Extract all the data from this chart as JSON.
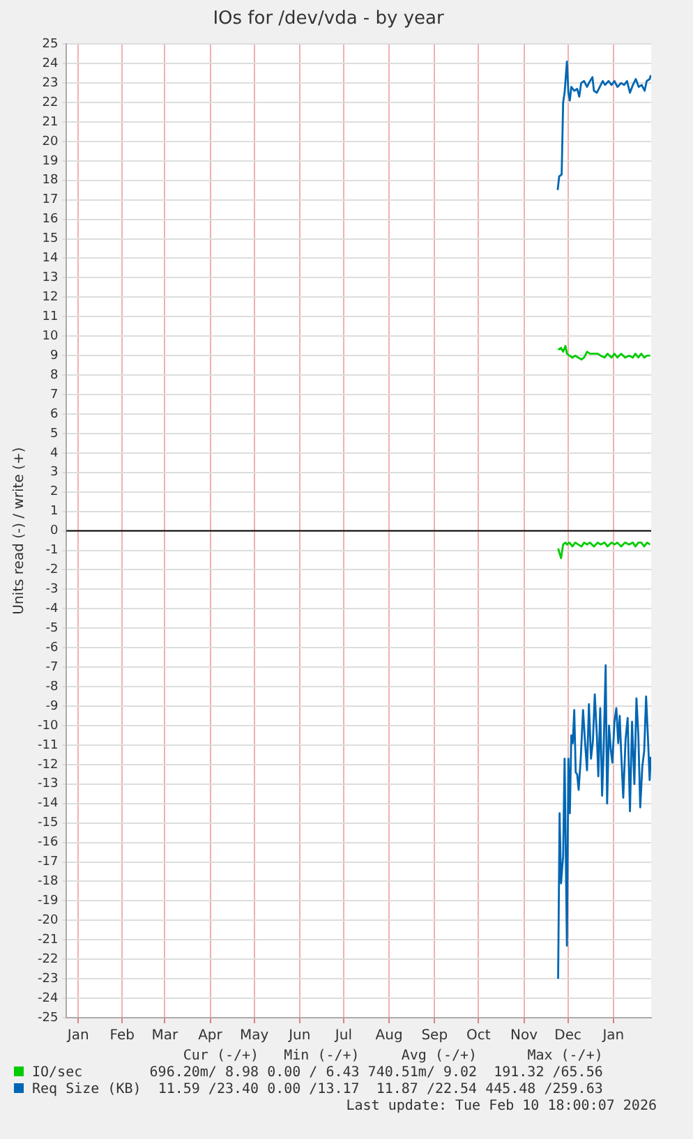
{
  "chart_data": {
    "type": "line",
    "title": "IOs for /dev/vda - by year",
    "ylabel": "Units read (-) / write (+)",
    "xlim": [
      "2025-01-08",
      "2026-02-10T18:00"
    ],
    "xticks": [
      {
        "value": "2025-01-16",
        "label": "Jan"
      },
      {
        "value": "2025-02-15",
        "label": "Feb"
      },
      {
        "value": "2025-03-16",
        "label": "Mar"
      },
      {
        "value": "2025-04-16",
        "label": "Apr"
      },
      {
        "value": "2025-05-16",
        "label": "May"
      },
      {
        "value": "2025-06-16",
        "label": "Jun"
      },
      {
        "value": "2025-07-16",
        "label": "Jul"
      },
      {
        "value": "2025-08-16",
        "label": "Aug"
      },
      {
        "value": "2025-09-16",
        "label": "Sep"
      },
      {
        "value": "2025-10-16",
        "label": "Oct"
      },
      {
        "value": "2025-11-16",
        "label": "Nov"
      },
      {
        "value": "2025-12-16",
        "label": "Dec"
      },
      {
        "value": "2026-01-16",
        "label": "Jan"
      }
    ],
    "ylim": [
      -25,
      25
    ],
    "yticks": [
      -25,
      -24,
      -23,
      -22,
      -21,
      -20,
      -19,
      -18,
      -17,
      -16,
      -15,
      -14,
      -13,
      -12,
      -11,
      -10,
      -9,
      -8,
      -7,
      -6,
      -5,
      -4,
      -3,
      -2,
      -1,
      0,
      1,
      2,
      3,
      4,
      5,
      6,
      7,
      8,
      9,
      10,
      11,
      12,
      13,
      14,
      15,
      16,
      17,
      18,
      19,
      20,
      21,
      22,
      23,
      24,
      25
    ],
    "grid": true,
    "legend": "bottom",
    "marker": "none",
    "line_style": "solid",
    "ref_lines": [
      {
        "axis": "y",
        "value": 0,
        "color": "#000000"
      }
    ],
    "series": [
      {
        "name": "IO/sec",
        "color": "#00cc00",
        "x": [
          "2025-12-09T07:00",
          "2025-12-11T07:00",
          "2025-12-12T17:00",
          "2025-12-14T07:00",
          "2025-12-15T07:00",
          "2025-12-17T00:00",
          "2025-12-19T00:00",
          "2025-12-21T00:00",
          "2025-12-23T00:00",
          "2025-12-25T07:00",
          "2025-12-27T00:00",
          "2025-12-29T00:00",
          "2025-12-31T00:00",
          "2026-01-02T17:00",
          "2026-01-05T07:00",
          "2026-01-07T07:00",
          "2026-01-10T00:00",
          "2026-01-12T00:00",
          "2026-01-14T17:00",
          "2026-01-16T17:00",
          "2026-01-18T17:00",
          "2026-01-21T07:00",
          "2026-01-24T00:00",
          "2026-01-26T17:00",
          "2026-01-29T07:00",
          "2026-01-31T00:00",
          "2026-02-02T00:00",
          "2026-02-04T00:00",
          "2026-02-06T00:00",
          "2026-02-08T00:00",
          "2026-02-10T00:00"
        ],
        "values": [
          9.3,
          9.4,
          9.2,
          9.5,
          9.1,
          9.0,
          8.9,
          9.0,
          8.9,
          8.8,
          8.9,
          9.2,
          9.1,
          9.1,
          9.1,
          9.0,
          8.9,
          9.1,
          8.9,
          9.1,
          8.9,
          9.1,
          8.9,
          9.0,
          8.9,
          9.1,
          8.9,
          9.1,
          8.9,
          9.0,
          9.0
        ]
      },
      {
        "color": "#00cc00",
        "x": [
          "2025-12-09T07:00",
          "2025-12-11T07:00",
          "2025-12-12T17:00",
          "2025-12-14T07:00",
          "2025-12-15T07:00",
          "2025-12-17T00:00",
          "2025-12-19T00:00",
          "2025-12-21T00:00",
          "2025-12-23T00:00",
          "2025-12-25T07:00",
          "2025-12-27T00:00",
          "2025-12-29T00:00",
          "2025-12-31T00:00",
          "2026-01-02T17:00",
          "2026-01-05T07:00",
          "2026-01-07T07:00",
          "2026-01-10T00:00",
          "2026-01-12T00:00",
          "2026-01-14T17:00",
          "2026-01-16T17:00",
          "2026-01-18T17:00",
          "2026-01-21T07:00",
          "2026-01-24T00:00",
          "2026-01-26T17:00",
          "2026-01-29T07:00",
          "2026-01-31T00:00",
          "2026-02-02T00:00",
          "2026-02-04T00:00",
          "2026-02-06T00:00",
          "2026-02-08T00:00",
          "2026-02-10T00:00"
        ],
        "values": [
          -0.9,
          -1.4,
          -0.7,
          -0.6,
          -0.7,
          -0.6,
          -0.8,
          -0.6,
          -0.7,
          -0.8,
          -0.6,
          -0.7,
          -0.6,
          -0.8,
          -0.6,
          -0.7,
          -0.6,
          -0.8,
          -0.6,
          -0.7,
          -0.6,
          -0.8,
          -0.6,
          -0.7,
          -0.6,
          -0.8,
          -0.6,
          -0.6,
          -0.8,
          -0.6,
          -0.7
        ]
      },
      {
        "name": "Req Size (KB)",
        "color": "#0066b3",
        "x": [
          "2025-12-09T00:00",
          "2025-12-10T00:00",
          "2025-12-11T17:00",
          "2025-12-12T17:00",
          "2025-12-13T17:00",
          "2025-12-15T07:00",
          "2025-12-16T07:00",
          "2025-12-17T07:00",
          "2025-12-18T07:00",
          "2025-12-20T07:00",
          "2025-12-22T07:00",
          "2025-12-23T17:00",
          "2025-12-25T00:00",
          "2025-12-27T00:00",
          "2025-12-29T00:00",
          "2025-12-30T07:00",
          "2026-01-01T17:00",
          "2026-01-02T17:00",
          "2026-01-04T17:00",
          "2026-01-06T17:00",
          "2026-01-08T17:00",
          "2026-01-10T07:00",
          "2026-01-12T17:00",
          "2026-01-14T17:00",
          "2026-01-16T17:00",
          "2026-01-18T17:00",
          "2026-01-21T07:00",
          "2026-01-23T07:00",
          "2026-01-25T07:00",
          "2026-01-27T07:00",
          "2026-01-29T07:00",
          "2026-01-31T07:00",
          "2026-02-02T07:00",
          "2026-02-04T07:00",
          "2026-02-06T07:00",
          "2026-02-07T17:00",
          "2026-02-09T17:00",
          "2026-02-10T12:00"
        ],
        "values": [
          17.5,
          18.2,
          18.3,
          22.0,
          22.5,
          24.1,
          22.5,
          22.1,
          22.8,
          22.6,
          22.7,
          22.3,
          23.0,
          23.1,
          22.8,
          23.0,
          23.3,
          22.6,
          22.5,
          22.8,
          23.1,
          22.9,
          23.1,
          22.9,
          23.1,
          22.8,
          23.0,
          22.9,
          23.1,
          22.5,
          22.9,
          23.2,
          22.8,
          22.9,
          22.6,
          23.1,
          23.2,
          23.4
        ]
      },
      {
        "color": "#0066b3",
        "x": [
          "2025-12-09T07:00",
          "2025-12-10T07:00",
          "2025-12-11T07:00",
          "2025-12-12T17:00",
          "2025-12-13T17:00",
          "2025-12-15T07:00",
          "2025-12-16T07:00",
          "2025-12-17T07:00",
          "2025-12-18T07:00",
          "2025-12-19T07:00",
          "2025-12-20T07:00",
          "2025-12-21T07:00",
          "2025-12-22T07:00",
          "2025-12-23T07:00",
          "2025-12-24T17:00",
          "2025-12-26T07:00",
          "2025-12-27T17:00",
          "2025-12-29T00:00",
          "2025-12-30T07:00",
          "2025-12-31T17:00",
          "2026-01-02T00:00",
          "2026-01-03T07:00",
          "2026-01-04T17:00",
          "2026-01-05T17:00",
          "2026-01-07T00:00",
          "2026-01-08T07:00",
          "2026-01-09T07:00",
          "2026-01-10T17:00",
          "2026-01-11T17:00",
          "2026-01-13T00:00",
          "2026-01-14T07:00",
          "2026-01-15T07:00",
          "2026-01-16T17:00",
          "2026-01-18T00:00",
          "2026-01-19T07:00",
          "2026-01-20T07:00",
          "2026-01-21T07:00",
          "2026-01-22T17:00",
          "2026-01-24T07:00",
          "2026-01-25T17:00",
          "2026-01-27T07:00",
          "2026-01-28T17:00",
          "2026-01-30T07:00",
          "2026-01-31T17:00",
          "2026-02-02T00:00",
          "2026-02-03T07:00",
          "2026-02-04T17:00",
          "2026-02-06T00:00",
          "2026-02-07T07:00",
          "2026-02-08T17:00",
          "2026-02-09T17:00",
          "2026-02-10T12:00"
        ],
        "values": [
          -23.0,
          -14.5,
          -18.1,
          -16.7,
          -11.7,
          -21.3,
          -11.7,
          -14.5,
          -10.5,
          -10.9,
          -9.2,
          -12.4,
          -12.5,
          -13.3,
          -11.7,
          -9.2,
          -10.9,
          -12.3,
          -8.9,
          -11.7,
          -10.8,
          -8.4,
          -10.5,
          -12.6,
          -9.1,
          -13.6,
          -11.4,
          -6.9,
          -14.0,
          -10.0,
          -11.3,
          -11.9,
          -9.8,
          -9.1,
          -10.9,
          -9.5,
          -11.4,
          -13.7,
          -10.7,
          -9.6,
          -14.4,
          -9.8,
          -13.0,
          -8.6,
          -10.5,
          -14.2,
          -12.1,
          -11.3,
          -8.5,
          -10.9,
          -12.8,
          -11.6
        ]
      }
    ],
    "annotations": [
      "Cur (-/+)",
      "Min (-/+)",
      "Avg (-/+)",
      "Max (-/+)",
      "696.20m/ 8.98",
      "0.00 / 6.43",
      "740.51m/ 9.02",
      "191.32 /65.56",
      "11.59 /23.40",
      "0.00 /13.17",
      "11.87 /22.54",
      "445.48 /259.63",
      "Last update: Tue Feb 10 18:00:07 2026"
    ]
  }
}
